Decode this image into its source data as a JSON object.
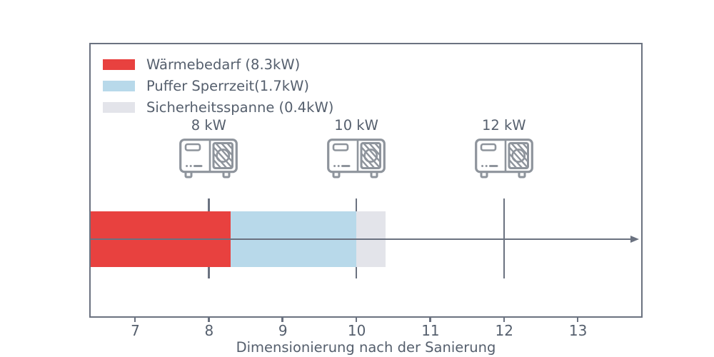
{
  "chart_data": {
    "type": "bar",
    "orientation": "horizontal_stacked",
    "title": "",
    "xlabel": "Dimensionierung nach der Sanierung",
    "ylabel": "",
    "xlim": [
      6.4,
      13.85
    ],
    "x_ticks": [
      7,
      8,
      9,
      10,
      11,
      12,
      13
    ],
    "grid": false,
    "legend_position": "upper_left",
    "unit": "kW",
    "segments": [
      {
        "name": "Wärmebedarf",
        "value_kw": 8.3,
        "start": 0.0,
        "end": 8.3,
        "color": "#e8413f",
        "legend_label": "Wärmebedarf (8.3kW)"
      },
      {
        "name": "Puffer Sperrzeit",
        "value_kw": 1.7,
        "start": 8.3,
        "end": 10.0,
        "color": "#b8d9ea",
        "legend_label": "Puffer Sperrzeit(1.7kW)"
      },
      {
        "name": "Sicherheitsspanne",
        "value_kw": 0.4,
        "start": 10.0,
        "end": 10.4,
        "color": "#e3e4ea",
        "legend_label": "Sicherheitsspanne (0.4kW)"
      }
    ],
    "pump_markers": [
      {
        "label": "8 kW",
        "x": 8
      },
      {
        "label": "10 kW",
        "x": 10
      },
      {
        "label": "12 kW",
        "x": 12
      }
    ]
  },
  "icons": {
    "pump": "heat-pump-outdoor-unit-icon",
    "axis_arrow": "right-arrow-icon"
  },
  "style": {
    "frame_color": "#6b7280",
    "text_color": "#555f6d",
    "icon_color": "#8e949c",
    "background": "#ffffff"
  }
}
